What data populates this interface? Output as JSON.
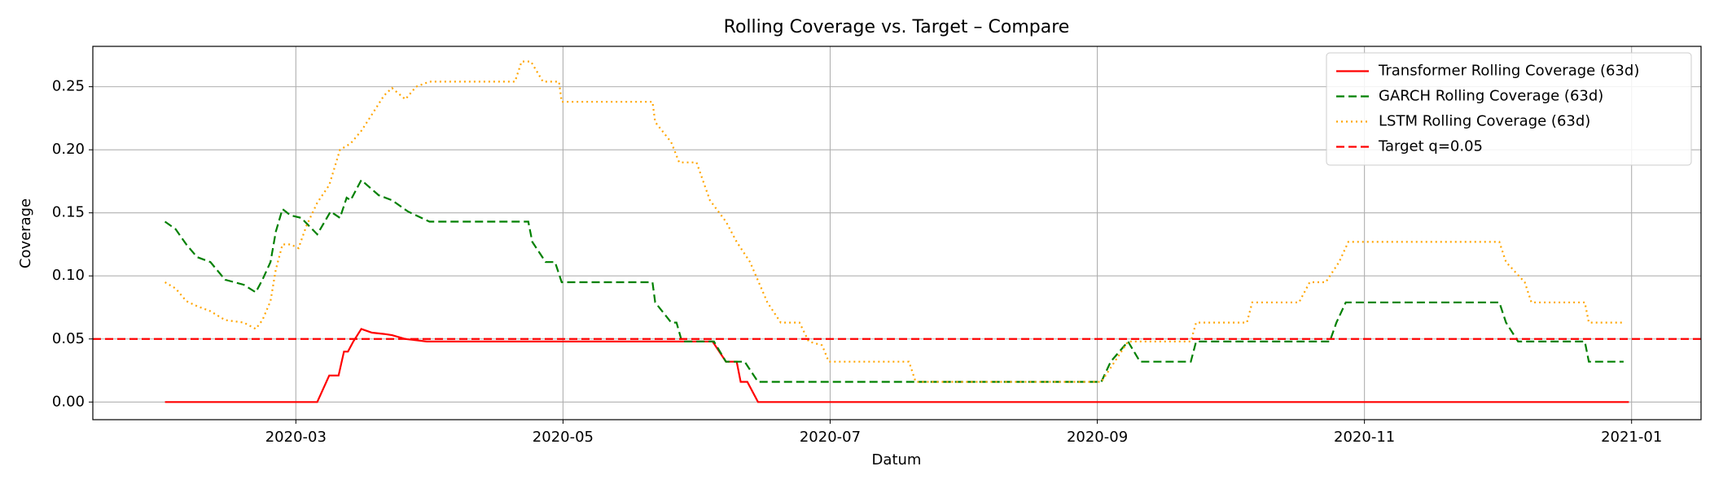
{
  "chart_data": {
    "type": "line",
    "title": "Rolling Coverage vs. Target – Compare",
    "xlabel": "Datum",
    "ylabel": "Coverage",
    "xlim": [
      1.48,
      13.52
    ],
    "xticks": [
      {
        "value": 3,
        "label": "2020-03"
      },
      {
        "value": 5,
        "label": "2020-05"
      },
      {
        "value": 7,
        "label": "2020-07"
      },
      {
        "value": 9,
        "label": "2020-09"
      },
      {
        "value": 11,
        "label": "2020-11"
      },
      {
        "value": 13,
        "label": "2021-01"
      }
    ],
    "ylim": [
      -0.014,
      0.282
    ],
    "yticks": [
      {
        "value": 0,
        "label": "0.00"
      },
      {
        "value": 0.05,
        "label": "0.05"
      },
      {
        "value": 0.1,
        "label": "0.10"
      },
      {
        "value": 0.15,
        "label": "0.15"
      },
      {
        "value": 0.2,
        "label": "0.20"
      },
      {
        "value": 0.25,
        "label": "0.25"
      }
    ],
    "grid": true,
    "legend": "upper right",
    "series": [
      {
        "name": "Transformer Rolling Coverage (63d)",
        "color": "#ff0000",
        "linestyle": "solid",
        "x": [
          2.02,
          3.16,
          3.25,
          3.32,
          3.36,
          3.39,
          3.43,
          3.49,
          3.57,
          3.66,
          3.72,
          3.82,
          3.9,
          3.98,
          6.12,
          6.22,
          6.3,
          6.33,
          6.38,
          6.46,
          12.98
        ],
        "values": [
          0,
          0,
          0.021,
          0.021,
          0.04,
          0.04,
          0.048,
          0.058,
          0.055,
          0.054,
          0.053,
          0.05,
          0.049,
          0.048,
          0.048,
          0.032,
          0.032,
          0.016,
          0.016,
          0,
          0
        ]
      },
      {
        "name": "GARCH Rolling Coverage (63d)",
        "color": "#008000",
        "linestyle": "dashed",
        "x": [
          2.02,
          2.1,
          2.18,
          2.26,
          2.36,
          2.47,
          2.61,
          2.7,
          2.75,
          2.81,
          2.85,
          2.9,
          2.96,
          3.04,
          3.16,
          3.26,
          3.33,
          3.38,
          3.41,
          3.49,
          3.62,
          3.72,
          3.84,
          4.0,
          4.74,
          4.77,
          4.87,
          4.94,
          4.99,
          5.67,
          5.69,
          5.81,
          5.85,
          5.89,
          6.13,
          6.22,
          6.36,
          6.46,
          9.03,
          9.1,
          9.23,
          9.32,
          9.7,
          9.74,
          10.74,
          10.79,
          10.86,
          12.01,
          12.06,
          12.15,
          12.65,
          12.68,
          12.94
        ],
        "values": [
          0.143,
          0.137,
          0.125,
          0.115,
          0.111,
          0.097,
          0.093,
          0.087,
          0.097,
          0.111,
          0.135,
          0.153,
          0.148,
          0.146,
          0.133,
          0.151,
          0.146,
          0.162,
          0.16,
          0.176,
          0.164,
          0.16,
          0.151,
          0.143,
          0.143,
          0.127,
          0.111,
          0.111,
          0.095,
          0.095,
          0.079,
          0.063,
          0.063,
          0.048,
          0.048,
          0.032,
          0.032,
          0.016,
          0.016,
          0.032,
          0.048,
          0.032,
          0.032,
          0.048,
          0.048,
          0.063,
          0.079,
          0.079,
          0.063,
          0.048,
          0.048,
          0.032,
          0.032
        ]
      },
      {
        "name": "LSTM Rolling Coverage (63d)",
        "color": "#ffa500",
        "linestyle": "dotted",
        "x": [
          2.02,
          2.1,
          2.18,
          2.26,
          2.36,
          2.47,
          2.61,
          2.7,
          2.75,
          2.81,
          2.85,
          2.9,
          2.96,
          3.02,
          3.08,
          3.16,
          3.25,
          3.33,
          3.41,
          3.49,
          3.57,
          3.66,
          3.72,
          3.82,
          3.9,
          4.0,
          4.64,
          4.69,
          4.76,
          4.85,
          4.97,
          4.99,
          5.67,
          5.69,
          5.81,
          5.87,
          6.0,
          6.1,
          6.22,
          6.3,
          6.4,
          6.53,
          6.63,
          6.77,
          6.84,
          6.94,
          6.99,
          7.59,
          7.64,
          9.03,
          9.23,
          9.7,
          9.74,
          10.12,
          10.16,
          10.51,
          10.59,
          10.71,
          10.81,
          10.88,
          12.01,
          12.06,
          12.2,
          12.25,
          12.65,
          12.68,
          12.94
        ],
        "values": [
          0.095,
          0.09,
          0.08,
          0.076,
          0.072,
          0.065,
          0.063,
          0.058,
          0.065,
          0.08,
          0.105,
          0.125,
          0.125,
          0.122,
          0.14,
          0.158,
          0.172,
          0.2,
          0.205,
          0.215,
          0.228,
          0.243,
          0.249,
          0.24,
          0.25,
          0.254,
          0.254,
          0.27,
          0.27,
          0.254,
          0.254,
          0.238,
          0.238,
          0.222,
          0.206,
          0.19,
          0.19,
          0.16,
          0.143,
          0.127,
          0.111,
          0.079,
          0.063,
          0.063,
          0.048,
          0.045,
          0.032,
          0.032,
          0.016,
          0.016,
          0.048,
          0.048,
          0.063,
          0.063,
          0.079,
          0.079,
          0.095,
          0.095,
          0.111,
          0.127,
          0.127,
          0.111,
          0.095,
          0.079,
          0.079,
          0.063,
          0.063
        ]
      }
    ],
    "hline": {
      "name": "Target q=0.05",
      "value": 0.05,
      "color": "#ff0000",
      "linestyle": "dashed"
    }
  }
}
